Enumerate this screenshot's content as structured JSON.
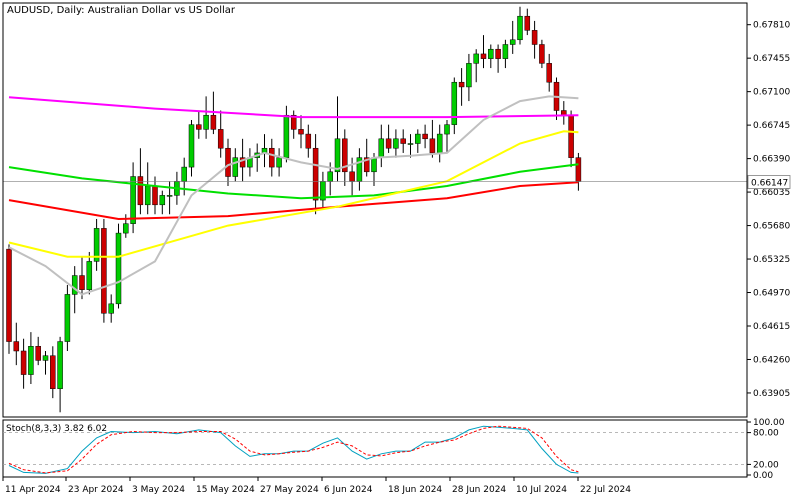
{
  "chart_data": {
    "type": "candlestick",
    "title": "AUDUSD, Daily:  Australian Dollar vs US Dollar",
    "current_price": "0.66147",
    "current_price_value": 0.66147,
    "y_ticks": [
      "0.67810",
      "0.67455",
      "0.67100",
      "0.66745",
      "0.66390",
      "0.66035",
      "0.65680",
      "0.65325",
      "0.64970",
      "0.64615",
      "0.64260",
      "0.63905"
    ],
    "ylim": [
      0.6365,
      0.6804
    ],
    "x_ticks": [
      "11 Apr 2024",
      "23 Apr 2024",
      "3 May 2024",
      "15 May 2024",
      "27 May 2024",
      "6 Jun 2024",
      "18 Jun 2024",
      "28 Jun 2024",
      "10 Jul 2024",
      "22 Jul 2024"
    ],
    "ohlc": [
      [
        0.6543,
        0.6548,
        0.6432,
        0.6445
      ],
      [
        0.6445,
        0.6465,
        0.642,
        0.6435
      ],
      [
        0.6435,
        0.6448,
        0.6395,
        0.641
      ],
      [
        0.641,
        0.6455,
        0.64,
        0.644
      ],
      [
        0.644,
        0.645,
        0.642,
        0.6425
      ],
      [
        0.6425,
        0.6435,
        0.641,
        0.643
      ],
      [
        0.643,
        0.644,
        0.6385,
        0.6395
      ],
      [
        0.6395,
        0.645,
        0.637,
        0.6445
      ],
      [
        0.6445,
        0.6505,
        0.6435,
        0.6495
      ],
      [
        0.6495,
        0.6525,
        0.6475,
        0.6515
      ],
      [
        0.6515,
        0.6535,
        0.649,
        0.65
      ],
      [
        0.65,
        0.654,
        0.6495,
        0.653
      ],
      [
        0.653,
        0.6575,
        0.652,
        0.6565
      ],
      [
        0.6565,
        0.6575,
        0.6465,
        0.6475
      ],
      [
        0.6475,
        0.6495,
        0.6465,
        0.6485
      ],
      [
        0.6485,
        0.657,
        0.648,
        0.656
      ],
      [
        0.656,
        0.658,
        0.6555,
        0.657
      ],
      [
        0.657,
        0.6635,
        0.656,
        0.662
      ],
      [
        0.662,
        0.665,
        0.658,
        0.659
      ],
      [
        0.659,
        0.6635,
        0.658,
        0.661
      ],
      [
        0.661,
        0.662,
        0.658,
        0.659
      ],
      [
        0.659,
        0.6605,
        0.658,
        0.66
      ],
      [
        0.66,
        0.6615,
        0.658,
        0.66
      ],
      [
        0.66,
        0.6625,
        0.659,
        0.6615
      ],
      [
        0.6615,
        0.664,
        0.66,
        0.663
      ],
      [
        0.663,
        0.668,
        0.662,
        0.6675
      ],
      [
        0.6675,
        0.669,
        0.666,
        0.667
      ],
      [
        0.667,
        0.6705,
        0.666,
        0.6685
      ],
      [
        0.6685,
        0.671,
        0.6665,
        0.667
      ],
      [
        0.667,
        0.669,
        0.664,
        0.665
      ],
      [
        0.665,
        0.666,
        0.661,
        0.662
      ],
      [
        0.662,
        0.665,
        0.6615,
        0.664
      ],
      [
        0.664,
        0.666,
        0.6615,
        0.663
      ],
      [
        0.663,
        0.665,
        0.662,
        0.664
      ],
      [
        0.664,
        0.6655,
        0.6625,
        0.6645
      ],
      [
        0.6645,
        0.6665,
        0.663,
        0.665
      ],
      [
        0.665,
        0.666,
        0.662,
        0.663
      ],
      [
        0.663,
        0.665,
        0.662,
        0.664
      ],
      [
        0.664,
        0.6695,
        0.6635,
        0.6685
      ],
      [
        0.6685,
        0.669,
        0.666,
        0.667
      ],
      [
        0.667,
        0.6685,
        0.665,
        0.6665
      ],
      [
        0.6665,
        0.6675,
        0.664,
        0.665
      ],
      [
        0.665,
        0.6665,
        0.658,
        0.6595
      ],
      [
        0.6595,
        0.6625,
        0.6585,
        0.6615
      ],
      [
        0.6615,
        0.6635,
        0.66,
        0.6625
      ],
      [
        0.6625,
        0.6705,
        0.6615,
        0.666
      ],
      [
        0.666,
        0.667,
        0.661,
        0.6625
      ],
      [
        0.6625,
        0.664,
        0.66,
        0.6615
      ],
      [
        0.6615,
        0.665,
        0.6605,
        0.664
      ],
      [
        0.664,
        0.666,
        0.662,
        0.6625
      ],
      [
        0.6625,
        0.6645,
        0.661,
        0.664
      ],
      [
        0.664,
        0.6675,
        0.663,
        0.666
      ],
      [
        0.666,
        0.6675,
        0.6645,
        0.665
      ],
      [
        0.665,
        0.667,
        0.664,
        0.666
      ],
      [
        0.666,
        0.667,
        0.6645,
        0.6655
      ],
      [
        0.6655,
        0.6665,
        0.664,
        0.6655
      ],
      [
        0.6655,
        0.667,
        0.6645,
        0.6665
      ],
      [
        0.6665,
        0.6675,
        0.665,
        0.666
      ],
      [
        0.666,
        0.668,
        0.664,
        0.6645
      ],
      [
        0.6645,
        0.6675,
        0.6635,
        0.6665
      ],
      [
        0.6665,
        0.668,
        0.6645,
        0.6675
      ],
      [
        0.6675,
        0.6725,
        0.6665,
        0.672
      ],
      [
        0.672,
        0.6735,
        0.6695,
        0.6715
      ],
      [
        0.6715,
        0.675,
        0.67,
        0.674
      ],
      [
        0.674,
        0.6755,
        0.672,
        0.675
      ],
      [
        0.675,
        0.677,
        0.6735,
        0.6745
      ],
      [
        0.6745,
        0.676,
        0.6735,
        0.6755
      ],
      [
        0.6755,
        0.676,
        0.673,
        0.6745
      ],
      [
        0.6745,
        0.6765,
        0.6735,
        0.676
      ],
      [
        0.676,
        0.6785,
        0.675,
        0.6765
      ],
      [
        0.6765,
        0.68,
        0.676,
        0.679
      ],
      [
        0.679,
        0.6798,
        0.677,
        0.6775
      ],
      [
        0.6775,
        0.6785,
        0.6745,
        0.676
      ],
      [
        0.676,
        0.6765,
        0.6735,
        0.674
      ],
      [
        0.674,
        0.675,
        0.671,
        0.672
      ],
      [
        0.672,
        0.6725,
        0.668,
        0.669
      ],
      [
        0.669,
        0.67,
        0.6675,
        0.6685
      ],
      [
        0.6685,
        0.669,
        0.663,
        0.664
      ],
      [
        0.664,
        0.6645,
        0.6605,
        0.6615
      ]
    ],
    "moving_averages": [
      {
        "color": "#ff00ff",
        "points": [
          [
            0,
            0.6704
          ],
          [
            20,
            0.6692
          ],
          [
            40,
            0.6683
          ],
          [
            60,
            0.6683
          ],
          [
            78,
            0.6685
          ]
        ]
      },
      {
        "color": "#ff0000",
        "points": [
          [
            0,
            0.6595
          ],
          [
            15,
            0.6575
          ],
          [
            30,
            0.6578
          ],
          [
            45,
            0.6588
          ],
          [
            60,
            0.6597
          ],
          [
            70,
            0.661
          ],
          [
            78,
            0.6614
          ]
        ]
      },
      {
        "color": "#00e000",
        "points": [
          [
            0,
            0.663
          ],
          [
            10,
            0.6618
          ],
          [
            20,
            0.661
          ],
          [
            30,
            0.6602
          ],
          [
            40,
            0.6597
          ],
          [
            50,
            0.66
          ],
          [
            60,
            0.661
          ],
          [
            70,
            0.6625
          ],
          [
            78,
            0.6633
          ]
        ]
      },
      {
        "color": "#ffff00",
        "points": [
          [
            0,
            0.655
          ],
          [
            8,
            0.6535
          ],
          [
            15,
            0.6535
          ],
          [
            30,
            0.6568
          ],
          [
            45,
            0.6588
          ],
          [
            60,
            0.6615
          ],
          [
            70,
            0.6655
          ],
          [
            76,
            0.6668
          ],
          [
            78,
            0.6667
          ]
        ]
      },
      {
        "color": "#c0c0c0",
        "points": [
          [
            0,
            0.6545
          ],
          [
            5,
            0.6525
          ],
          [
            10,
            0.6495
          ],
          [
            15,
            0.6508
          ],
          [
            20,
            0.653
          ],
          [
            25,
            0.66
          ],
          [
            30,
            0.6632
          ],
          [
            35,
            0.6645
          ],
          [
            40,
            0.6635
          ],
          [
            45,
            0.6628
          ],
          [
            50,
            0.664
          ],
          [
            55,
            0.6642
          ],
          [
            60,
            0.6645
          ],
          [
            65,
            0.668
          ],
          [
            70,
            0.67
          ],
          [
            74,
            0.6705
          ],
          [
            78,
            0.6703
          ]
        ]
      }
    ],
    "stochastic": {
      "label": "Stoch(8,3,3) 3.82 6.02",
      "y_ticks": [
        "100.00",
        "80.00",
        "20.00",
        "0.00"
      ],
      "k": [
        [
          0,
          18
        ],
        [
          2,
          5
        ],
        [
          5,
          3
        ],
        [
          8,
          12
        ],
        [
          10,
          45
        ],
        [
          12,
          70
        ],
        [
          14,
          82
        ],
        [
          17,
          80
        ],
        [
          20,
          82
        ],
        [
          23,
          78
        ],
        [
          26,
          85
        ],
        [
          29,
          80
        ],
        [
          31,
          55
        ],
        [
          33,
          35
        ],
        [
          35,
          40
        ],
        [
          37,
          40
        ],
        [
          39,
          45
        ],
        [
          41,
          45
        ],
        [
          43,
          60
        ],
        [
          45,
          70
        ],
        [
          47,
          45
        ],
        [
          49,
          30
        ],
        [
          51,
          40
        ],
        [
          53,
          45
        ],
        [
          55,
          45
        ],
        [
          57,
          62
        ],
        [
          59,
          62
        ],
        [
          61,
          70
        ],
        [
          63,
          85
        ],
        [
          65,
          92
        ],
        [
          67,
          90
        ],
        [
          69,
          88
        ],
        [
          71,
          85
        ],
        [
          73,
          50
        ],
        [
          75,
          20
        ],
        [
          77,
          5
        ],
        [
          78,
          3.82
        ]
      ],
      "d": [
        [
          0,
          22
        ],
        [
          2,
          10
        ],
        [
          5,
          4
        ],
        [
          8,
          8
        ],
        [
          10,
          30
        ],
        [
          12,
          58
        ],
        [
          14,
          76
        ],
        [
          17,
          82
        ],
        [
          20,
          80
        ],
        [
          23,
          80
        ],
        [
          26,
          82
        ],
        [
          29,
          82
        ],
        [
          31,
          68
        ],
        [
          33,
          45
        ],
        [
          35,
          38
        ],
        [
          37,
          40
        ],
        [
          39,
          43
        ],
        [
          41,
          45
        ],
        [
          43,
          52
        ],
        [
          45,
          62
        ],
        [
          47,
          55
        ],
        [
          49,
          38
        ],
        [
          51,
          36
        ],
        [
          53,
          42
        ],
        [
          55,
          45
        ],
        [
          57,
          55
        ],
        [
          59,
          62
        ],
        [
          61,
          66
        ],
        [
          63,
          78
        ],
        [
          65,
          88
        ],
        [
          67,
          92
        ],
        [
          69,
          90
        ],
        [
          71,
          88
        ],
        [
          73,
          70
        ],
        [
          75,
          35
        ],
        [
          77,
          10
        ],
        [
          78,
          6.02
        ]
      ]
    }
  }
}
